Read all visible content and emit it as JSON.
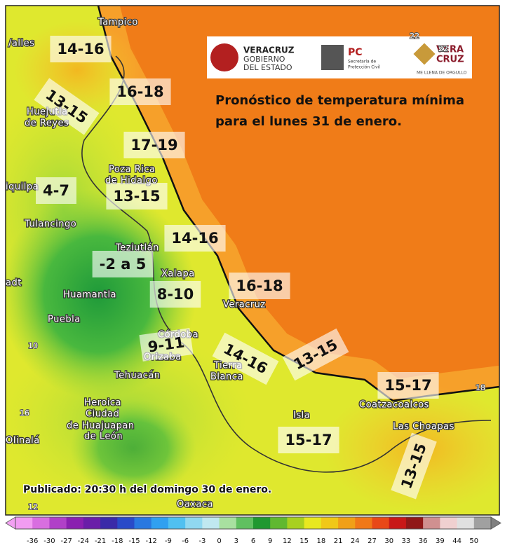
{
  "title": [
    "Pronóstico de temperatura mínima",
    "para el lunes 31 de enero."
  ],
  "published": "Publicado: 20:30 h del domingo 30 de enero.",
  "logos": {
    "state": [
      "VERACRUZ",
      "GOBIERNO",
      "DEL ESTADO"
    ],
    "pc": [
      "PC",
      "Secretaría de",
      "Protección Civil"
    ],
    "brand": [
      "VERA",
      "CRUZ",
      "ME LLENA DE ORGULLO"
    ]
  },
  "cities": [
    "Tampico",
    "/alles",
    "Huejutla",
    "de Reyes",
    "Poza Rica",
    "de Hidalgo",
    "iquilpa",
    "Tulancingo",
    "Teziutlán",
    "Xalapa",
    "adt",
    "Huamantla",
    "Puebla",
    "Veracruz",
    "Córdoba",
    "Orizaba",
    "Tehuacán",
    "Tierra",
    "Blanca",
    "Heroica",
    "Ciudad",
    "de Huajuapan",
    "de León",
    "Isla",
    "Coatzacoalcos",
    "Las Choapas",
    "Olinalá",
    "Oaxaca"
  ],
  "isotherms": [
    "22",
    "22",
    "18",
    "10",
    "16",
    "12"
  ],
  "forecasts": [
    "14-16",
    "16-18",
    "13-15",
    "17-19",
    "4-7",
    "13-15",
    "14-16",
    "-2 a 5",
    "8-10",
    "16-18",
    "9-11",
    "14-16",
    "13-15",
    "15-17",
    "15-17",
    "13-15"
  ],
  "colorbar_ticks": [
    "-36",
    "-30",
    "-27",
    "-24",
    "-21",
    "-18",
    "-15",
    "-12",
    "-9",
    "-6",
    "-3",
    "0",
    "3",
    "6",
    "9",
    "12",
    "15",
    "18",
    "21",
    "24",
    "27",
    "30",
    "33",
    "36",
    "39",
    "44",
    "50"
  ]
}
